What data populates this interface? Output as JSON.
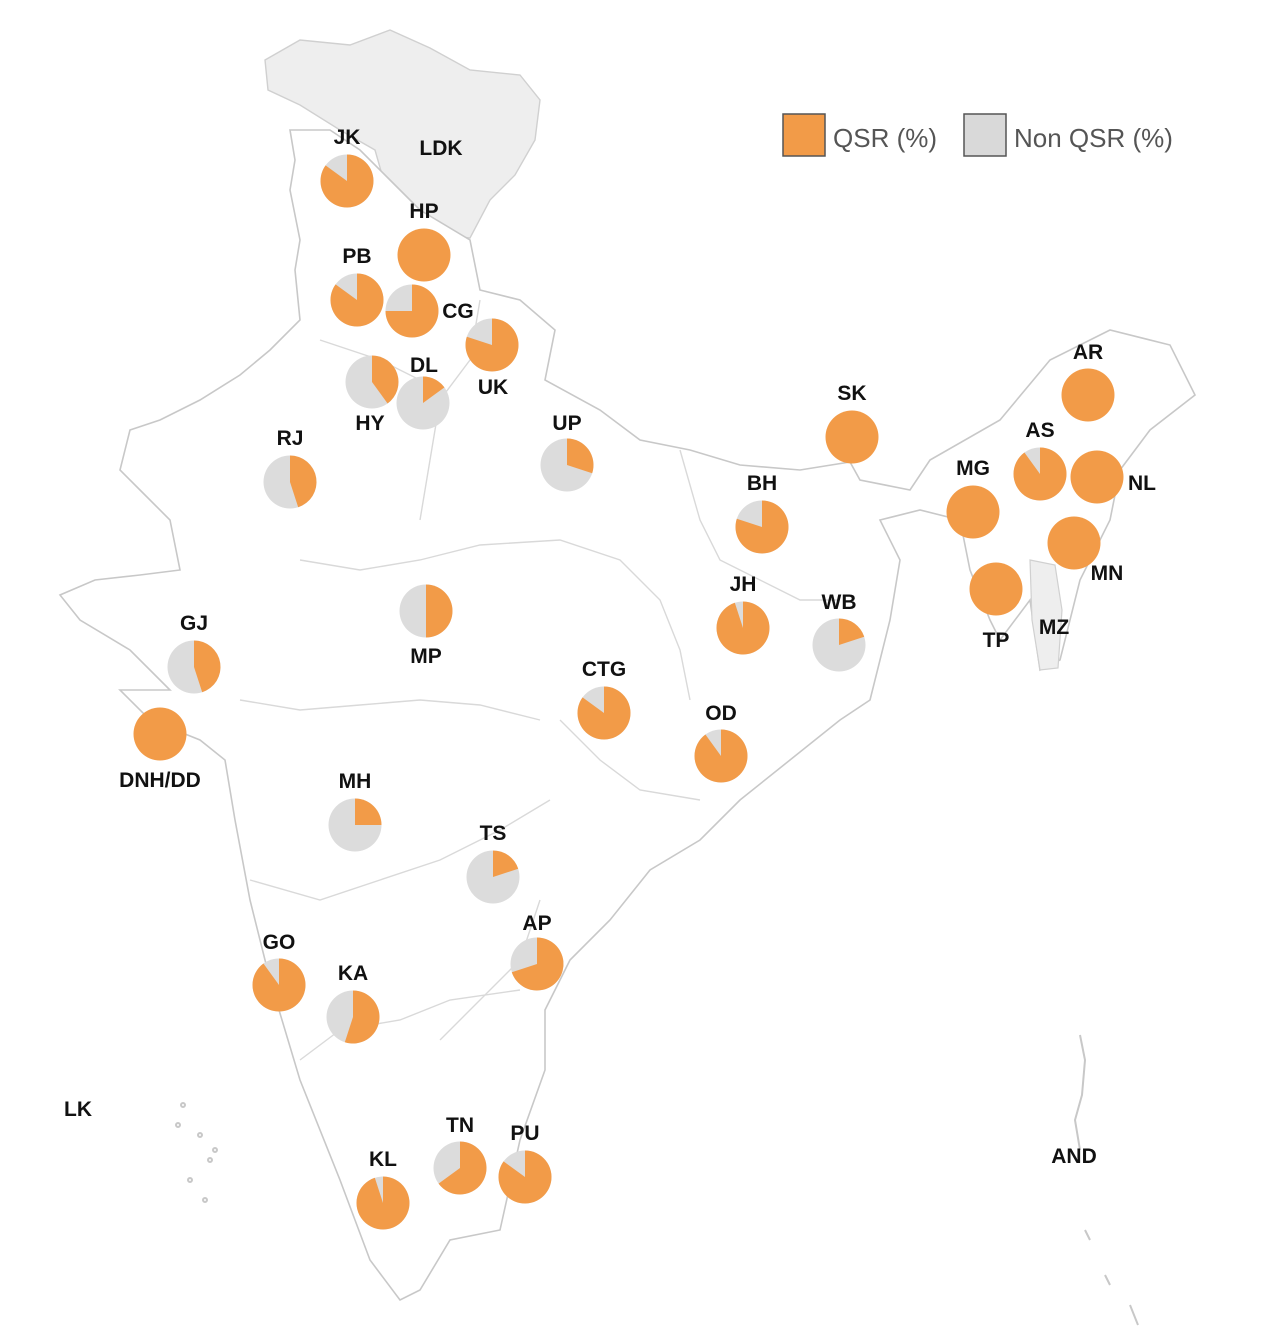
{
  "colors": {
    "qsr": "#f29b48",
    "non_qsr": "#dcdcdc",
    "shaded_region": "#eeeeee",
    "border": "#c8c8c8"
  },
  "legend": {
    "items": [
      {
        "label": "QSR (%)",
        "color": "#f29b48"
      },
      {
        "label": "Non QSR (%)",
        "color": "#d9d9d9"
      }
    ]
  },
  "labels": [
    {
      "text": "LDK"
    },
    {
      "text": "LK"
    },
    {
      "text": "AND"
    },
    {
      "text": "MZ"
    }
  ],
  "regions": [
    {
      "code": "JK",
      "qsr_pct": 85
    },
    {
      "code": "HP",
      "qsr_pct": 100
    },
    {
      "code": "PB",
      "qsr_pct": 85
    },
    {
      "code": "CG",
      "qsr_pct": 75
    },
    {
      "code": "UK",
      "qsr_pct": 80
    },
    {
      "code": "HY",
      "qsr_pct": 40
    },
    {
      "code": "DL",
      "qsr_pct": 15
    },
    {
      "code": "RJ",
      "qsr_pct": 45
    },
    {
      "code": "UP",
      "qsr_pct": 30
    },
    {
      "code": "SK",
      "qsr_pct": 100
    },
    {
      "code": "AR",
      "qsr_pct": 100
    },
    {
      "code": "AS",
      "qsr_pct": 90
    },
    {
      "code": "NL",
      "qsr_pct": 100
    },
    {
      "code": "MG",
      "qsr_pct": 100
    },
    {
      "code": "MN",
      "qsr_pct": 100
    },
    {
      "code": "TP",
      "qsr_pct": 100
    },
    {
      "code": "BH",
      "qsr_pct": 80
    },
    {
      "code": "JH",
      "qsr_pct": 95
    },
    {
      "code": "WB",
      "qsr_pct": 20
    },
    {
      "code": "GJ",
      "qsr_pct": 45
    },
    {
      "code": "MP",
      "qsr_pct": 50
    },
    {
      "code": "CTG",
      "qsr_pct": 85
    },
    {
      "code": "OD",
      "qsr_pct": 90
    },
    {
      "code": "DNH/DD",
      "qsr_pct": 100
    },
    {
      "code": "MH",
      "qsr_pct": 25
    },
    {
      "code": "TS",
      "qsr_pct": 20
    },
    {
      "code": "AP",
      "qsr_pct": 70
    },
    {
      "code": "GO",
      "qsr_pct": 90
    },
    {
      "code": "KA",
      "qsr_pct": 55
    },
    {
      "code": "TN",
      "qsr_pct": 65
    },
    {
      "code": "PU",
      "qsr_pct": 85
    },
    {
      "code": "KL",
      "qsr_pct": 95
    }
  ]
}
